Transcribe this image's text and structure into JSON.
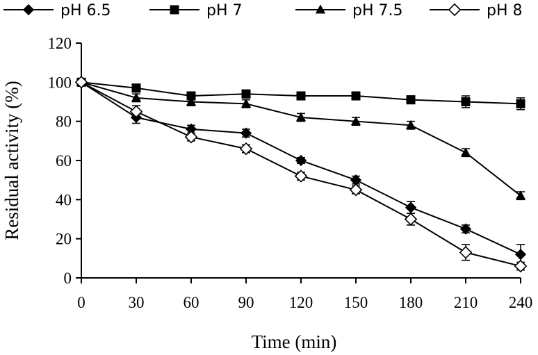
{
  "chart_data": {
    "type": "line",
    "title": "",
    "xlabel": "Time (min)",
    "ylabel": "Residual activity (%)",
    "x": [
      0,
      30,
      60,
      90,
      120,
      150,
      180,
      210,
      240
    ],
    "xlim": [
      0,
      240
    ],
    "ylim": [
      0,
      120
    ],
    "xticks": [
      0,
      30,
      60,
      90,
      120,
      150,
      180,
      210,
      240
    ],
    "yticks": [
      0,
      20,
      40,
      60,
      80,
      100,
      120
    ],
    "grid": false,
    "legend_position": "top",
    "series": [
      {
        "name": "pH 6.5",
        "marker": "diamond-filled",
        "values": [
          100,
          82,
          76,
          74,
          60,
          50,
          36,
          25,
          12
        ],
        "errors": [
          1,
          3,
          2,
          2,
          1.5,
          2,
          3,
          2,
          5
        ]
      },
      {
        "name": "pH 7",
        "marker": "square-filled",
        "values": [
          100,
          97,
          93,
          94,
          93,
          93,
          91,
          90,
          89
        ],
        "errors": [
          1,
          2,
          2,
          2,
          2,
          2,
          2,
          3,
          3
        ]
      },
      {
        "name": "pH 7.5",
        "marker": "triangle-filled",
        "values": [
          100,
          92,
          90,
          89,
          82,
          80,
          78,
          64,
          42
        ],
        "errors": [
          1,
          2,
          2,
          2,
          2,
          2,
          2,
          2,
          2
        ]
      },
      {
        "name": "pH 8",
        "marker": "diamond-open",
        "values": [
          100,
          85,
          72,
          66,
          52,
          45,
          30,
          13,
          6
        ],
        "errors": [
          1,
          3,
          2,
          2,
          2,
          2,
          3,
          4,
          2
        ]
      }
    ]
  }
}
